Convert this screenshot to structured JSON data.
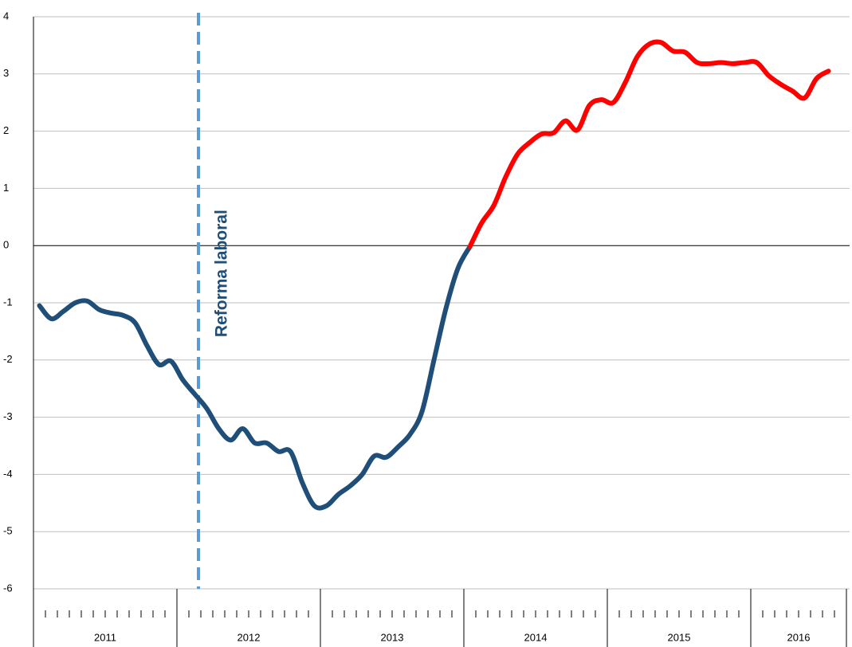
{
  "chart_data": {
    "type": "line",
    "categories": [
      null,
      null,
      null,
      null,
      null,
      null,
      null,
      null,
      null,
      null,
      null,
      null,
      null,
      null,
      null,
      null,
      null,
      null,
      null,
      null,
      null,
      null,
      null,
      null,
      null,
      null,
      null,
      null,
      null,
      null,
      null,
      null,
      null,
      null,
      null,
      null,
      null,
      null,
      null,
      null,
      null,
      null,
      null,
      null,
      null,
      null,
      null,
      null,
      null,
      null,
      null,
      null,
      null,
      null,
      null,
      null,
      null,
      null,
      null,
      null,
      null,
      null,
      null,
      null,
      null,
      null,
      null,
      null
    ],
    "groups": [
      {
        "label": "2011",
        "count": 12
      },
      {
        "label": "2012",
        "count": 12
      },
      {
        "label": "2013",
        "count": 12
      },
      {
        "label": "2014",
        "count": 12
      },
      {
        "label": "2015",
        "count": 12
      },
      {
        "label": "2016",
        "count": 8
      }
    ],
    "series": [
      {
        "color": "#1f4e79",
        "values": [
          -1.05,
          -1.28,
          -1.15,
          -1.0,
          -0.97,
          -1.12,
          -1.18,
          -1.22,
          -1.35,
          -1.75,
          -2.08,
          -2.02,
          -2.35,
          -2.6,
          -2.85,
          -3.2,
          -3.4,
          -3.2,
          -3.45,
          -3.45,
          -3.6,
          -3.6,
          -4.15,
          -4.55,
          -4.55,
          -4.35,
          -4.2,
          -4.0,
          -3.68,
          -3.7,
          -3.52,
          -3.3,
          -2.9,
          -2.0,
          -1.1,
          -0.4,
          -0.02,
          null,
          null,
          null,
          null,
          null,
          null,
          null,
          null,
          null,
          null,
          null,
          null,
          null,
          null,
          null,
          null,
          null,
          null,
          null,
          null,
          null,
          null,
          null,
          null,
          null,
          null,
          null,
          null,
          null,
          null,
          null
        ]
      },
      {
        "color": "#ff0000",
        "values": [
          null,
          null,
          null,
          null,
          null,
          null,
          null,
          null,
          null,
          null,
          null,
          null,
          null,
          null,
          null,
          null,
          null,
          null,
          null,
          null,
          null,
          null,
          null,
          null,
          null,
          null,
          null,
          null,
          null,
          null,
          null,
          null,
          null,
          null,
          null,
          null,
          -0.02,
          0.4,
          0.7,
          1.2,
          1.6,
          1.8,
          1.95,
          1.97,
          2.18,
          2.02,
          2.45,
          2.55,
          2.5,
          2.85,
          3.3,
          3.52,
          3.55,
          3.4,
          3.38,
          3.2,
          3.18,
          3.2,
          3.18,
          3.2,
          3.2,
          2.97,
          2.82,
          2.7,
          2.58,
          2.92,
          3.05,
          null
        ]
      }
    ],
    "annotation": {
      "text": "Reforma laboral",
      "at": 13.3,
      "color": "#5b9bd5"
    },
    "ylim": [
      -6,
      4
    ],
    "yticks": [
      -6,
      -5,
      -4,
      -3,
      -2,
      -1,
      0,
      1,
      2,
      3,
      4
    ],
    "grid": true
  }
}
